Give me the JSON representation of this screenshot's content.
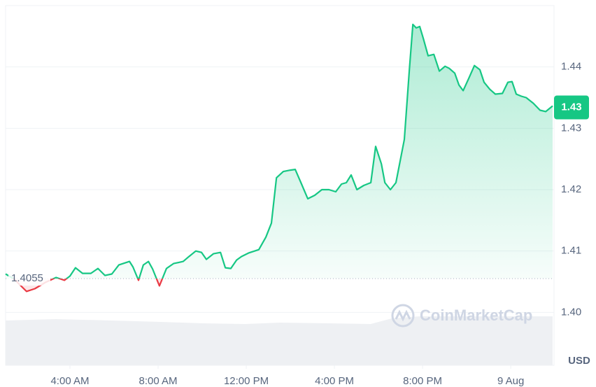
{
  "chart_data": {
    "type": "line",
    "x": [
      1.08,
      1.46,
      2.03,
      2.41,
      2.89,
      3.37,
      3.75,
      4,
      4.25,
      4.57,
      4.95,
      5.27,
      5.59,
      5.9,
      6.22,
      6.7,
      6.86,
      7.11,
      7.33,
      7.56,
      7.75,
      8.06,
      8.38,
      8.7,
      9.14,
      9.4,
      9.71,
      9.97,
      10.19,
      10.51,
      10.83,
      11.05,
      11.3,
      11.56,
      11.78,
      12.1,
      12.57,
      12.89,
      13.14,
      13.37,
      13.68,
      14,
      14.22,
      14.48,
      14.79,
      15.11,
      15.43,
      15.75,
      16.06,
      16.32,
      16.54,
      16.76,
      17.02,
      17.33,
      17.65,
      17.87,
      18.13,
      18.29,
      18.54,
      18.79,
      19.17,
      19.4,
      19.56,
      19.71,
      19.87,
      20.03,
      20.25,
      20.51,
      20.76,
      21.02,
      21.21,
      21.46,
      21.65,
      21.84,
      22.1,
      22.35,
      22.6,
      22.79,
      23.05,
      23.3,
      23.62,
      23.87,
      24.06,
      24.25,
      24.48,
      24.7,
      25.02,
      25.33,
      25.59,
      25.9
    ],
    "values": [
      1.40625,
      1.40545,
      1.40341,
      1.40386,
      1.40489,
      1.40568,
      1.40523,
      1.40591,
      1.40727,
      1.40636,
      1.40636,
      1.40716,
      1.40602,
      1.40625,
      1.40773,
      1.4083,
      1.40739,
      1.40523,
      1.40773,
      1.4083,
      1.40705,
      1.40432,
      1.40716,
      1.40795,
      1.4083,
      1.40909,
      1.41,
      1.40977,
      1.40864,
      1.40955,
      1.40977,
      1.40727,
      1.40716,
      1.40852,
      1.40909,
      1.40966,
      1.41023,
      1.41227,
      1.41455,
      1.42193,
      1.42295,
      1.42318,
      1.4233,
      1.42114,
      1.41852,
      1.41909,
      1.42,
      1.42,
      1.41966,
      1.42091,
      1.42114,
      1.42239,
      1.42,
      1.42068,
      1.42114,
      1.42705,
      1.4242,
      1.42114,
      1.42,
      1.42114,
      1.42818,
      1.43955,
      1.44693,
      1.44636,
      1.44659,
      1.44466,
      1.44182,
      1.44205,
      1.43932,
      1.44011,
      1.43977,
      1.43898,
      1.43705,
      1.43614,
      1.43818,
      1.44023,
      1.43955,
      1.4375,
      1.43636,
      1.43557,
      1.43568,
      1.4375,
      1.43761,
      1.43557,
      1.43523,
      1.435,
      1.43409,
      1.43295,
      1.43273,
      1.43364
    ],
    "color": "#16c784",
    "down_color": "#ea3943",
    "xlim": [
      1.08,
      25.9
    ],
    "xticks": [
      {
        "value": 4,
        "label": "4:00 AM"
      },
      {
        "value": 8,
        "label": "8:00 AM"
      },
      {
        "value": 12,
        "label": "12:00 PM"
      },
      {
        "value": 16,
        "label": "4:00 PM"
      },
      {
        "value": 20,
        "label": "8:00 PM"
      },
      {
        "value": 24,
        "label": "9 Aug"
      }
    ],
    "ylim": [
      1.39,
      1.45
    ],
    "yticks": [
      {
        "value": 1.4,
        "label": "1.40"
      },
      1.41,
      1.42,
      1.43,
      1.44
    ],
    "baseline": 1.4055,
    "current_price": {
      "value": 1.4334,
      "label": "1.43"
    },
    "y_axis_label": "USD",
    "watermark": "CoinMarketCap",
    "grid": true
  }
}
